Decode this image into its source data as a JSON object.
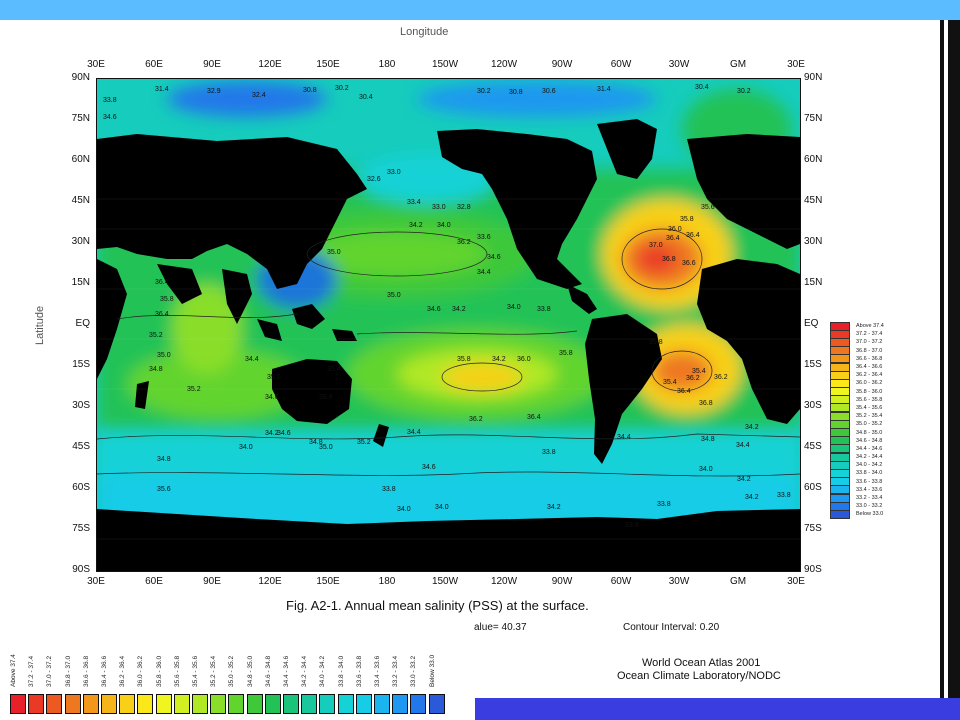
{
  "header": {
    "longitude_title": "Longitude",
    "latitude_title": "Latitude"
  },
  "lon_labels": [
    "30E",
    "60E",
    "90E",
    "120E",
    "150E",
    "180",
    "150W",
    "120W",
    "90W",
    "60W",
    "30W",
    "GM",
    "30E"
  ],
  "lat_labels_left": [
    "90N",
    "75N",
    "60N",
    "45N",
    "30N",
    "15N",
    "EQ",
    "15S",
    "30S",
    "45S",
    "60S",
    "75S",
    "90S"
  ],
  "lat_labels_right": [
    "90N",
    "75N",
    "60N",
    "45N",
    "30N",
    "15N",
    "EQ",
    "15S",
    "30S",
    "45S",
    "60S",
    "75S",
    "90S"
  ],
  "caption": "Fig. A2-1.   Annual  mean salinity (PSS) at the surface.",
  "min_value_text": "alue=  40.37",
  "contour_interval_text": "Contour Interval:   0.20",
  "credits": {
    "line1": "World Ocean Atlas 2001",
    "line2": "Ocean Climate Laboratory/NODC"
  },
  "legend": [
    {
      "label": "Above  37.4",
      "color": "#e8202a"
    },
    {
      "label": "37.2 - 37.4",
      "color": "#ea3a26"
    },
    {
      "label": "37.0 - 37.2",
      "color": "#ec5a22"
    },
    {
      "label": "36.8 - 37.0",
      "color": "#ee7820"
    },
    {
      "label": "36.6 - 36.8",
      "color": "#f2961c"
    },
    {
      "label": "36.4 - 36.6",
      "color": "#f5b41a"
    },
    {
      "label": "36.2 - 36.4",
      "color": "#f8d018"
    },
    {
      "label": "36.0 - 36.2",
      "color": "#fbe81a"
    },
    {
      "label": "35.8 - 36.0",
      "color": "#eef520"
    },
    {
      "label": "35.6 - 35.8",
      "color": "#d2ef22"
    },
    {
      "label": "35.4 - 35.6",
      "color": "#b0e826"
    },
    {
      "label": "35.2 - 35.4",
      "color": "#8ade2a"
    },
    {
      "label": "35.0 - 35.2",
      "color": "#62d42e"
    },
    {
      "label": "34.8 - 35.0",
      "color": "#3ec83a"
    },
    {
      "label": "34.6 - 34.8",
      "color": "#22c256"
    },
    {
      "label": "34.4 - 34.6",
      "color": "#1ac47a"
    },
    {
      "label": "34.2 - 34.4",
      "color": "#18c89c"
    },
    {
      "label": "34.0 - 34.2",
      "color": "#16ccbc"
    },
    {
      "label": "33.8 - 34.0",
      "color": "#14d2d6"
    },
    {
      "label": "33.6 - 33.8",
      "color": "#16cce6"
    },
    {
      "label": "33.4 - 33.6",
      "color": "#1ab4ee"
    },
    {
      "label": "33.2 - 33.4",
      "color": "#1e98f0"
    },
    {
      "label": "33.0 - 33.2",
      "color": "#2278ea"
    },
    {
      "label": "Below  33.0",
      "color": "#2a5ad8"
    }
  ],
  "contour_labels": [
    "31.4",
    "32.9",
    "32.4",
    "30.8",
    "30.2",
    "30.4",
    "30.2",
    "30.8",
    "30.6",
    "31.4",
    "30.4",
    "30.2",
    "33.8",
    "34.6",
    "33.0",
    "32.6",
    "33.4",
    "33.0",
    "32.8",
    "34.2",
    "34.0",
    "33.6",
    "35.0",
    "36.2",
    "34.6",
    "34.4",
    "35.0",
    "34.6",
    "34.2",
    "34.0",
    "33.8",
    "36.4",
    "35.8",
    "36.4",
    "35.2",
    "35.0",
    "34.8",
    "34.4",
    "35.0",
    "35.4",
    "35.2",
    "35.8",
    "34.6",
    "35.8",
    "34.2",
    "36.0",
    "35.8",
    "36.4",
    "36.2",
    "35.2",
    "34.8",
    "34.0",
    "34.2",
    "34.6",
    "35.0",
    "34.4",
    "34.8",
    "35.6",
    "34.6",
    "33.8",
    "33.8",
    "34.2",
    "34.0",
    "34.0",
    "33.8",
    "33.8",
    "34.4",
    "34.2",
    "34.0",
    "34.2",
    "33.8",
    "37.0",
    "36.8",
    "36.6",
    "36.4",
    "36.0",
    "35.8",
    "36.4",
    "35.6",
    "36.2",
    "36.8",
    "35.4",
    "36.2",
    "34.8",
    "34.4",
    "34.2",
    "35.8",
    "35.4",
    "36.4",
    "36.6",
    "36.8"
  ]
}
